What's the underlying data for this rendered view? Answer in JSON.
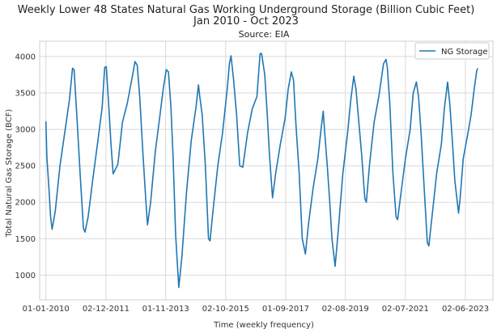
{
  "chart_data": {
    "type": "line",
    "title_line1": "Weekly Lower 48 States Natural Gas Working Underground Storage (Billion Cubic Feet)",
    "title_line2": "Jan 2010 - Oct 2023",
    "subtitle": "Source: EIA",
    "xlabel": "Time (weekly frequency)",
    "ylabel": "Total Natural Gas Storage (BCF)",
    "xlim": [
      2009.8,
      2024.3
    ],
    "ylim": [
      660,
      4210
    ],
    "x_ticks": [
      {
        "label": "01-01-2010",
        "value": 2010.0
      },
      {
        "label": "02-12-2011",
        "value": 2011.92
      },
      {
        "label": "01-11-2013",
        "value": 2013.83
      },
      {
        "label": "02-10-2015",
        "value": 2015.75
      },
      {
        "label": "01-09-2017",
        "value": 2017.67
      },
      {
        "label": "02-08-2019",
        "value": 2019.58
      },
      {
        "label": "02-07-2021",
        "value": 2021.5
      },
      {
        "label": "02-06-2023",
        "value": 2023.42
      }
    ],
    "y_ticks": [
      1000,
      1500,
      2000,
      2500,
      3000,
      3500,
      4000
    ],
    "legend": {
      "label": "NG Storage",
      "position": "top-right"
    },
    "series": [
      {
        "name": "NG Storage",
        "color": "#1f77b4",
        "points": [
          [
            2010.0,
            3110
          ],
          [
            2010.03,
            2620
          ],
          [
            2010.1,
            2170
          ],
          [
            2010.15,
            1800
          ],
          [
            2010.2,
            1630
          ],
          [
            2010.3,
            1880
          ],
          [
            2010.45,
            2500
          ],
          [
            2010.6,
            2950
          ],
          [
            2010.75,
            3400
          ],
          [
            2010.85,
            3840
          ],
          [
            2010.9,
            3820
          ],
          [
            2011.0,
            3120
          ],
          [
            2011.1,
            2350
          ],
          [
            2011.2,
            1640
          ],
          [
            2011.25,
            1590
          ],
          [
            2011.35,
            1800
          ],
          [
            2011.5,
            2320
          ],
          [
            2011.65,
            2800
          ],
          [
            2011.8,
            3300
          ],
          [
            2011.88,
            3850
          ],
          [
            2011.93,
            3860
          ],
          [
            2012.0,
            3390
          ],
          [
            2012.08,
            2800
          ],
          [
            2012.15,
            2390
          ],
          [
            2012.3,
            2520
          ],
          [
            2012.45,
            3100
          ],
          [
            2012.6,
            3350
          ],
          [
            2012.75,
            3690
          ],
          [
            2012.85,
            3930
          ],
          [
            2012.92,
            3880
          ],
          [
            2013.0,
            3450
          ],
          [
            2013.1,
            2700
          ],
          [
            2013.2,
            2000
          ],
          [
            2013.25,
            1690
          ],
          [
            2013.35,
            2000
          ],
          [
            2013.5,
            2700
          ],
          [
            2013.65,
            3200
          ],
          [
            2013.75,
            3550
          ],
          [
            2013.85,
            3820
          ],
          [
            2013.92,
            3790
          ],
          [
            2014.0,
            3300
          ],
          [
            2014.07,
            2600
          ],
          [
            2014.15,
            1550
          ],
          [
            2014.25,
            830
          ],
          [
            2014.35,
            1250
          ],
          [
            2014.5,
            2150
          ],
          [
            2014.65,
            2850
          ],
          [
            2014.8,
            3300
          ],
          [
            2014.88,
            3610
          ],
          [
            2014.92,
            3460
          ],
          [
            2015.0,
            3200
          ],
          [
            2015.1,
            2500
          ],
          [
            2015.2,
            1500
          ],
          [
            2015.25,
            1470
          ],
          [
            2015.35,
            1900
          ],
          [
            2015.5,
            2500
          ],
          [
            2015.65,
            2950
          ],
          [
            2015.8,
            3550
          ],
          [
            2015.87,
            3900
          ],
          [
            2015.92,
            4010
          ],
          [
            2016.0,
            3700
          ],
          [
            2016.1,
            3200
          ],
          [
            2016.2,
            2500
          ],
          [
            2016.3,
            2480
          ],
          [
            2016.45,
            2950
          ],
          [
            2016.6,
            3280
          ],
          [
            2016.75,
            3450
          ],
          [
            2016.85,
            4040
          ],
          [
            2016.9,
            4040
          ],
          [
            2017.0,
            3750
          ],
          [
            2017.08,
            3200
          ],
          [
            2017.15,
            2650
          ],
          [
            2017.25,
            2060
          ],
          [
            2017.35,
            2400
          ],
          [
            2017.5,
            2800
          ],
          [
            2017.65,
            3150
          ],
          [
            2017.75,
            3550
          ],
          [
            2017.85,
            3790
          ],
          [
            2017.92,
            3680
          ],
          [
            2018.0,
            3050
          ],
          [
            2018.1,
            2400
          ],
          [
            2018.2,
            1500
          ],
          [
            2018.3,
            1290
          ],
          [
            2018.4,
            1700
          ],
          [
            2018.55,
            2200
          ],
          [
            2018.7,
            2600
          ],
          [
            2018.8,
            3000
          ],
          [
            2018.87,
            3250
          ],
          [
            2018.92,
            2950
          ],
          [
            2019.0,
            2500
          ],
          [
            2019.08,
            2000
          ],
          [
            2019.15,
            1500
          ],
          [
            2019.25,
            1120
          ],
          [
            2019.35,
            1600
          ],
          [
            2019.5,
            2400
          ],
          [
            2019.65,
            2950
          ],
          [
            2019.75,
            3400
          ],
          [
            2019.85,
            3730
          ],
          [
            2019.92,
            3550
          ],
          [
            2020.0,
            3150
          ],
          [
            2020.1,
            2650
          ],
          [
            2020.2,
            2050
          ],
          [
            2020.25,
            2000
          ],
          [
            2020.35,
            2500
          ],
          [
            2020.5,
            3100
          ],
          [
            2020.65,
            3450
          ],
          [
            2020.8,
            3900
          ],
          [
            2020.88,
            3960
          ],
          [
            2020.92,
            3850
          ],
          [
            2021.0,
            3350
          ],
          [
            2021.1,
            2400
          ],
          [
            2021.2,
            1800
          ],
          [
            2021.25,
            1760
          ],
          [
            2021.35,
            2100
          ],
          [
            2021.5,
            2600
          ],
          [
            2021.65,
            3000
          ],
          [
            2021.75,
            3500
          ],
          [
            2021.85,
            3650
          ],
          [
            2021.92,
            3450
          ],
          [
            2022.0,
            2950
          ],
          [
            2022.1,
            2200
          ],
          [
            2022.2,
            1450
          ],
          [
            2022.25,
            1400
          ],
          [
            2022.35,
            1800
          ],
          [
            2022.5,
            2400
          ],
          [
            2022.65,
            2800
          ],
          [
            2022.75,
            3300
          ],
          [
            2022.85,
            3650
          ],
          [
            2022.92,
            3350
          ],
          [
            2023.0,
            2850
          ],
          [
            2023.08,
            2300
          ],
          [
            2023.2,
            1850
          ],
          [
            2023.25,
            2050
          ],
          [
            2023.35,
            2600
          ],
          [
            2023.5,
            2950
          ],
          [
            2023.6,
            3200
          ],
          [
            2023.7,
            3550
          ],
          [
            2023.78,
            3800
          ],
          [
            2023.81,
            3840
          ]
        ]
      }
    ]
  }
}
